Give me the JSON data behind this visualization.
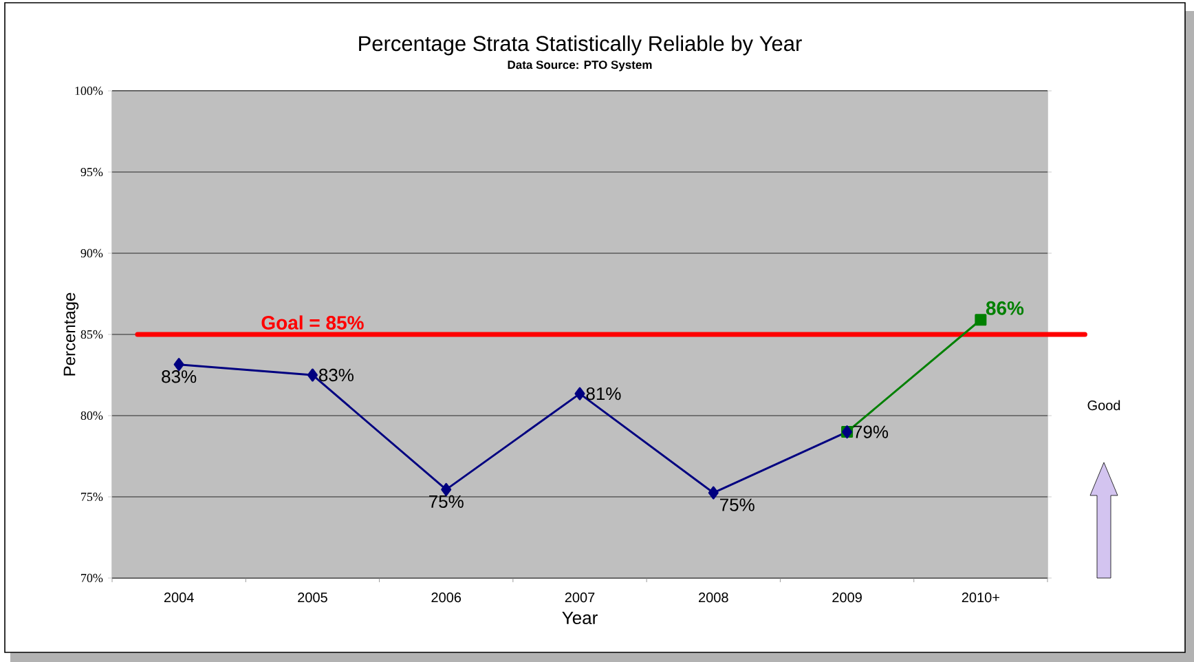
{
  "chart_data": {
    "type": "line",
    "title": "Percentage Strata Statistically Reliable by Year",
    "subtitle": "Data Source: PTO System",
    "xlabel": "Year",
    "ylabel": "Percentage",
    "categories": [
      "2004",
      "2005",
      "2006",
      "2007",
      "2008",
      "2009",
      "2010+"
    ],
    "series": [
      {
        "color": "#008000",
        "marker": "square",
        "values": [
          null,
          null,
          null,
          null,
          null,
          79.0,
          85.9
        ],
        "value_labels": [
          null,
          null,
          null,
          null,
          null,
          null,
          "86%"
        ]
      },
      {
        "color": "#000080",
        "marker": "diamond",
        "values": [
          83.15,
          82.5,
          75.45,
          81.35,
          75.25,
          79.0,
          null
        ],
        "value_labels": [
          "83%",
          "83%",
          "75%",
          "81%",
          "75%",
          "79%",
          null
        ]
      }
    ],
    "ylim": [
      70,
      100
    ],
    "yticks": [
      {
        "value": 70,
        "label": "70%"
      },
      {
        "value": 75,
        "label": "75%"
      },
      {
        "value": 80,
        "label": "80%"
      },
      {
        "value": 85,
        "label": "85%"
      },
      {
        "value": 90,
        "label": "90%"
      },
      {
        "value": 95,
        "label": "95%"
      },
      {
        "value": 100,
        "label": "100%"
      }
    ],
    "grid": "y",
    "line_style": "solid",
    "ref_lines": [
      {
        "axis": "y",
        "value": 85,
        "label": "Goal = 85%",
        "color": "#ff0000"
      }
    ],
    "annotations": [
      "Good"
    ]
  }
}
